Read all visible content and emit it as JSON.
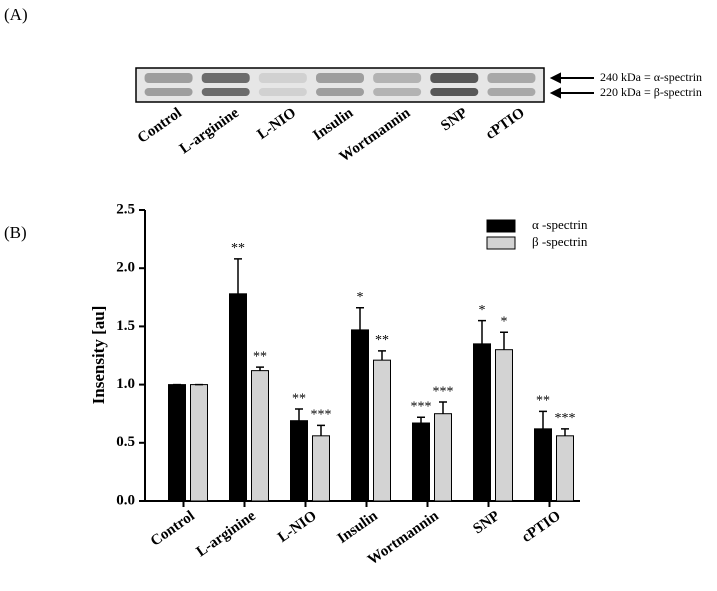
{
  "panel_labels": [
    "(A)",
    "(B)"
  ],
  "blot": {
    "lanes": [
      "Control",
      "L-arginine",
      "L-NIO",
      "Insulin",
      "Wortmannin",
      "SNP",
      "cPTIO"
    ],
    "markers": [
      "240 kDa = α-spectrin",
      "220 kDa = β-spectrin"
    ]
  },
  "chart_data": {
    "type": "bar",
    "y_label": "Insensity [au]",
    "categories": [
      "Control",
      "L-arginine",
      "L-NIO",
      "Insulin",
      "Wortmannin",
      "SNP",
      "cPTIO"
    ],
    "series": [
      {
        "name": "α -spectrin",
        "color": "#000000",
        "values": [
          1.0,
          1.78,
          0.69,
          1.47,
          0.67,
          1.35,
          0.62
        ],
        "errors": [
          0,
          0.3,
          0.1,
          0.19,
          0.05,
          0.2,
          0.15
        ],
        "significance": [
          null,
          "**",
          "**",
          "*",
          "***",
          "*",
          "**"
        ]
      },
      {
        "name": "β -spectrin",
        "color": "#d3d3d3",
        "values": [
          1.0,
          1.12,
          0.56,
          1.21,
          0.75,
          1.3,
          0.56
        ],
        "errors": [
          0,
          0.03,
          0.09,
          0.08,
          0.1,
          0.15,
          0.06
        ],
        "significance": [
          null,
          "**",
          "***",
          "**",
          "***",
          "*",
          "***"
        ]
      }
    ],
    "ylim": [
      0,
      2.5
    ],
    "yticks": [
      {
        "value": 0,
        "label": "0.0"
      },
      0.5,
      {
        "value": 1,
        "label": "1.0"
      },
      1.5,
      {
        "value": 2,
        "label": "2.0"
      },
      2.5
    ],
    "legend": "upper right"
  }
}
